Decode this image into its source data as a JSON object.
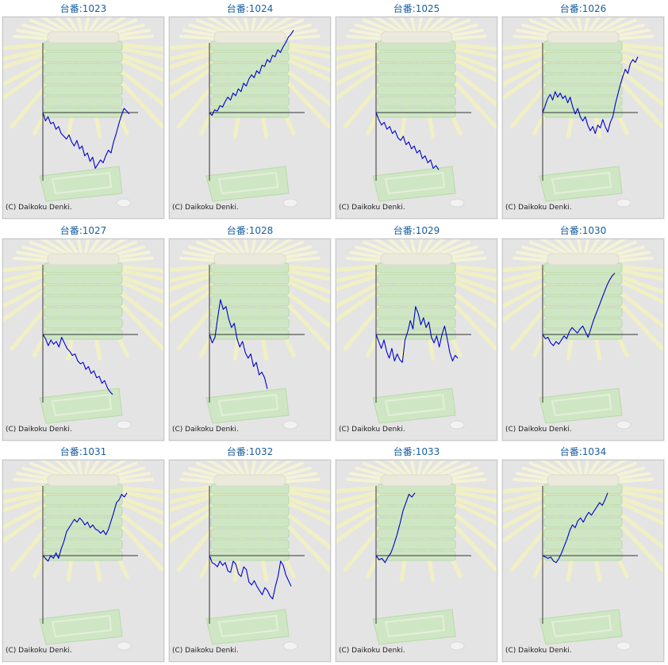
{
  "chart_data": [
    {
      "type": "line",
      "title": "台番:1023",
      "copyright": "(C) Daikoku Denki.",
      "line_color": "#0000cc",
      "values": [
        0,
        -12,
        -6,
        -16,
        -14,
        -24,
        -20,
        -30,
        -34,
        -38,
        -32,
        -42,
        -48,
        -40,
        -52,
        -48,
        -62,
        -58,
        -70,
        -64,
        -80,
        -74,
        -68,
        -72,
        -62,
        -54,
        -58,
        -42,
        -30,
        -16,
        -4,
        6,
        2,
        -2
      ]
    },
    {
      "type": "line",
      "title": "台番:1024",
      "copyright": "(C) Daikoku Denki.",
      "line_color": "#0000cc",
      "values": [
        0,
        -4,
        4,
        2,
        10,
        8,
        16,
        22,
        18,
        28,
        24,
        34,
        30,
        42,
        38,
        48,
        54,
        50,
        60,
        56,
        68,
        66,
        76,
        72,
        82,
        80,
        90,
        86,
        94,
        100,
        108,
        112,
        118
      ]
    },
    {
      "type": "line",
      "title": "台番:1025",
      "copyright": "(C) Daikoku Denki.",
      "line_color": "#0000cc",
      "values": [
        0,
        -10,
        -18,
        -14,
        -24,
        -20,
        -30,
        -26,
        -36,
        -40,
        -34,
        -46,
        -42,
        -52,
        -48,
        -58,
        -54,
        -66,
        -62,
        -72,
        -68,
        -80,
        -76,
        -82
      ]
    },
    {
      "type": "line",
      "title": "台番:1026",
      "copyright": "(C) Daikoku Denki.",
      "line_color": "#0000cc",
      "values": [
        0,
        10,
        20,
        26,
        18,
        30,
        22,
        28,
        20,
        24,
        14,
        22,
        8,
        -2,
        6,
        -6,
        -12,
        -6,
        -18,
        -26,
        -20,
        -30,
        -18,
        -22,
        -10,
        -20,
        -28,
        -14,
        -6,
        12,
        26,
        40,
        52,
        62,
        56,
        70,
        76,
        72,
        80
      ]
    },
    {
      "type": "line",
      "title": "台番:1027",
      "copyright": "(C) Daikoku Denki.",
      "line_color": "#0000cc",
      "values": [
        0,
        -6,
        -16,
        -8,
        -14,
        -10,
        -18,
        -4,
        -12,
        -20,
        -24,
        -30,
        -28,
        -38,
        -42,
        -40,
        -50,
        -46,
        -56,
        -52,
        -62,
        -60,
        -70,
        -66,
        -76,
        -82,
        -86
      ]
    },
    {
      "type": "line",
      "title": "台番:1028",
      "copyright": "(C) Daikoku Denki.",
      "line_color": "#0000cc",
      "values": [
        0,
        -12,
        -4,
        24,
        50,
        36,
        40,
        22,
        10,
        16,
        -6,
        -18,
        -10,
        -26,
        -34,
        -28,
        -46,
        -40,
        -58,
        -54,
        -62,
        -78
      ]
    },
    {
      "type": "line",
      "title": "台番:1029",
      "copyright": "(C) Daikoku Denki.",
      "line_color": "#0000cc",
      "values": [
        0,
        -10,
        -20,
        -8,
        -24,
        -34,
        -20,
        -38,
        -28,
        -36,
        -40,
        -8,
        4,
        20,
        8,
        40,
        30,
        14,
        24,
        10,
        18,
        -4,
        -12,
        -2,
        -18,
        0,
        12,
        -6,
        -26,
        -38,
        -30,
        -34
      ]
    },
    {
      "type": "line",
      "title": "台番:1030",
      "copyright": "(C) Daikoku Denki.",
      "line_color": "#0000cc",
      "values": [
        0,
        -6,
        -4,
        -12,
        -16,
        -10,
        -14,
        -8,
        -2,
        -6,
        4,
        10,
        6,
        2,
        8,
        12,
        4,
        -4,
        8,
        20,
        30,
        40,
        50,
        60,
        70,
        78,
        84,
        88
      ]
    },
    {
      "type": "line",
      "title": "台番:1031",
      "copyright": "(C) Daikoku Denki.",
      "line_color": "#0000cc",
      "values": [
        0,
        -4,
        -8,
        0,
        -4,
        4,
        -4,
        10,
        20,
        34,
        40,
        46,
        52,
        48,
        54,
        50,
        44,
        48,
        40,
        44,
        38,
        36,
        32,
        36,
        30,
        38,
        50,
        62,
        76,
        80,
        88,
        84,
        90
      ]
    },
    {
      "type": "line",
      "title": "台番:1032",
      "copyright": "(C) Daikoku Denki.",
      "line_color": "#0000cc",
      "values": [
        0,
        -10,
        -12,
        -16,
        -8,
        -14,
        -10,
        -22,
        -24,
        -8,
        -12,
        -26,
        -30,
        -16,
        -20,
        -38,
        -42,
        -36,
        -44,
        -50,
        -56,
        -46,
        -50,
        -58,
        -62,
        -44,
        -30,
        -8,
        -14,
        -28,
        -36,
        -44
      ]
    },
    {
      "type": "line",
      "title": "台番:1033",
      "copyright": "(C) Daikoku Denki.",
      "line_color": "#0000cc",
      "values": [
        0,
        -6,
        -4,
        -10,
        -2,
        4,
        16,
        30,
        46,
        64,
        76,
        88,
        84,
        90
      ]
    },
    {
      "type": "line",
      "title": "台番:1034",
      "copyright": "(C) Daikoku Denki.",
      "line_color": "#0000cc",
      "values": [
        0,
        -2,
        -4,
        -2,
        -8,
        -10,
        -4,
        4,
        14,
        24,
        36,
        44,
        40,
        50,
        54,
        48,
        56,
        62,
        58,
        64,
        70,
        76,
        72,
        80,
        90
      ]
    }
  ]
}
